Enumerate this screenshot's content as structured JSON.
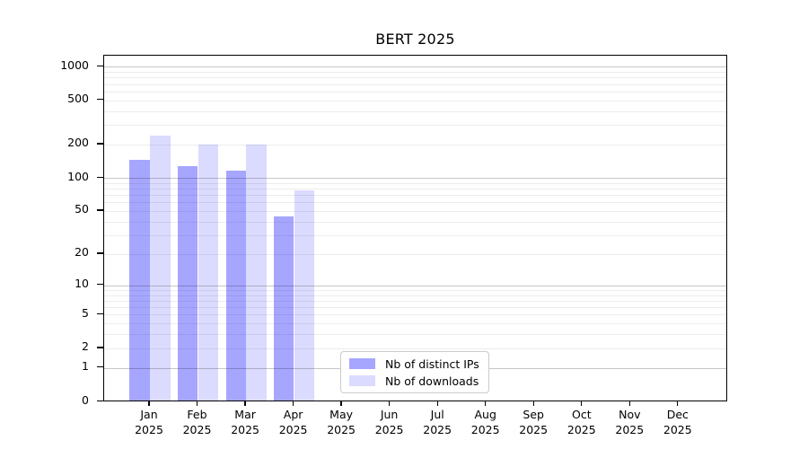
{
  "title": "BERT 2025",
  "chart_data": {
    "type": "bar",
    "title": "BERT 2025",
    "categories": [
      "Jan 2025",
      "Feb 2025",
      "Mar 2025",
      "Apr 2025",
      "May 2025",
      "Jun 2025",
      "Jul 2025",
      "Aug 2025",
      "Sep 2025",
      "Oct 2025",
      "Nov 2025",
      "Dec 2025"
    ],
    "series": [
      {
        "name": "Nb of distinct IPs",
        "color": "#a6a6ff",
        "values": [
          143,
          126,
          114,
          44,
          0,
          0,
          0,
          0,
          0,
          0,
          0,
          0
        ]
      },
      {
        "name": "Nb of downloads",
        "color": "#dbdbff",
        "values": [
          238,
          197,
          195,
          75,
          0,
          0,
          0,
          0,
          0,
          0,
          0,
          0
        ]
      }
    ],
    "xlabel": "",
    "ylabel": "",
    "yscale": "log1p",
    "ytick_values": [
      0,
      1,
      2,
      5,
      10,
      20,
      50,
      100,
      200,
      500,
      1000
    ],
    "ytick_labels": [
      "0",
      "1",
      "2",
      "5",
      "10",
      "20",
      "50",
      "100",
      "200",
      "500",
      "1000"
    ],
    "ylim": [
      0,
      1250
    ],
    "grid": "both",
    "legend_position": "lower-center"
  },
  "colors": {
    "major_grid": "#c6c6c6",
    "minor_grid": "#ececec",
    "axis": "#000000",
    "background": "#ffffff"
  }
}
